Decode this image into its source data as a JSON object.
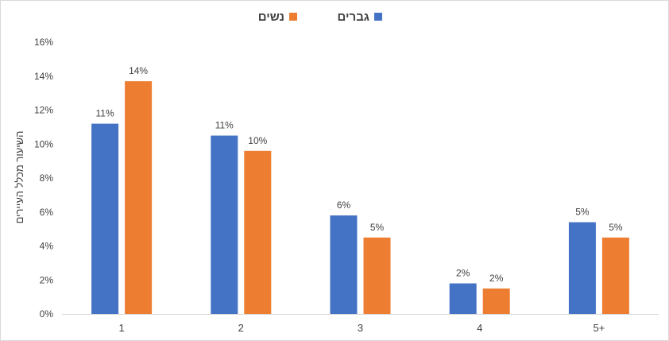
{
  "chart_data": {
    "type": "bar",
    "categories": [
      "1",
      "2",
      "3",
      "4",
      "5+"
    ],
    "series": [
      {
        "name": "גברים",
        "color": "#4472C4",
        "values": [
          11.2,
          10.5,
          5.8,
          1.8,
          5.4
        ],
        "labels": [
          "11%",
          "11%",
          "6%",
          "2%",
          "5%"
        ]
      },
      {
        "name": "נשים",
        "color": "#ED7D31",
        "values": [
          13.7,
          9.6,
          4.5,
          1.5,
          4.5
        ],
        "labels": [
          "14%",
          "10%",
          "5%",
          "2%",
          "5%"
        ]
      }
    ],
    "ylabel": "השיעור מכלל העיירים",
    "ylim": [
      0,
      16
    ],
    "yticks": [
      "0%",
      "2%",
      "4%",
      "6%",
      "8%",
      "10%",
      "12%",
      "14%",
      "16%"
    ],
    "grid": false,
    "legend_position": "top-center"
  }
}
